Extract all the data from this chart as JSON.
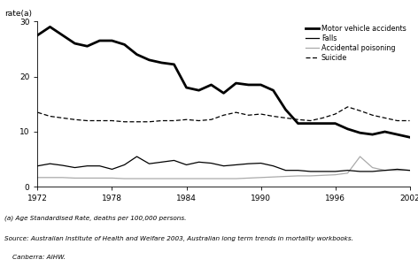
{
  "years": [
    1972,
    1973,
    1974,
    1975,
    1976,
    1977,
    1978,
    1979,
    1980,
    1981,
    1982,
    1983,
    1984,
    1985,
    1986,
    1987,
    1988,
    1989,
    1990,
    1991,
    1992,
    1993,
    1994,
    1995,
    1996,
    1997,
    1998,
    1999,
    2000,
    2001,
    2002
  ],
  "motor_vehicle": [
    27.5,
    29.0,
    27.5,
    26.0,
    25.5,
    26.5,
    26.5,
    25.8,
    24.0,
    23.0,
    22.5,
    22.2,
    18.0,
    17.5,
    18.5,
    17.0,
    18.8,
    18.5,
    18.5,
    17.5,
    14.0,
    11.5,
    11.5,
    11.5,
    11.5,
    10.5,
    9.8,
    9.5,
    10.0,
    9.5,
    9.0
  ],
  "falls": [
    3.8,
    4.2,
    3.9,
    3.5,
    3.8,
    3.8,
    3.2,
    4.0,
    5.5,
    4.2,
    4.5,
    4.8,
    4.0,
    4.5,
    4.3,
    3.8,
    4.0,
    4.2,
    4.3,
    3.8,
    3.0,
    3.0,
    2.8,
    2.8,
    2.8,
    3.0,
    2.8,
    2.8,
    3.0,
    3.2,
    3.0
  ],
  "accidental_poisoning": [
    1.7,
    1.7,
    1.7,
    1.6,
    1.6,
    1.6,
    1.6,
    1.5,
    1.5,
    1.5,
    1.5,
    1.5,
    1.5,
    1.5,
    1.5,
    1.5,
    1.5,
    1.6,
    1.7,
    1.8,
    1.9,
    2.0,
    2.0,
    2.1,
    2.2,
    2.5,
    5.5,
    3.5,
    3.0,
    3.0,
    3.0
  ],
  "suicide": [
    13.5,
    12.8,
    12.5,
    12.2,
    12.0,
    12.0,
    12.0,
    11.8,
    11.8,
    11.8,
    12.0,
    12.0,
    12.2,
    12.0,
    12.2,
    13.0,
    13.5,
    13.0,
    13.2,
    12.8,
    12.5,
    12.2,
    12.0,
    12.5,
    13.2,
    14.5,
    13.8,
    13.0,
    12.5,
    12.0,
    12.0
  ],
  "ylim": [
    0,
    30
  ],
  "yticks": [
    0,
    10,
    20,
    30
  ],
  "xticks": [
    1972,
    1978,
    1984,
    1990,
    1996,
    2002
  ],
  "bg_color": "#ffffff",
  "motor_color": "#000000",
  "falls_color": "#000000",
  "accidental_color": "#aaaaaa",
  "suicide_color": "#000000",
  "ylabel_text": "rate(a)",
  "footnote1": "(a) Age Standardised Rate, deaths per 100,000 persons.",
  "footnote2": "Source: Australian Institute of Health and Welfare 2003, Australian long term trends in mortality workbooks.",
  "footnote3": "    Canberra: AIHW.",
  "legend_labels": [
    "Motor vehicle accidents",
    "Falls",
    "Accidental poisoning",
    "Suicide"
  ]
}
